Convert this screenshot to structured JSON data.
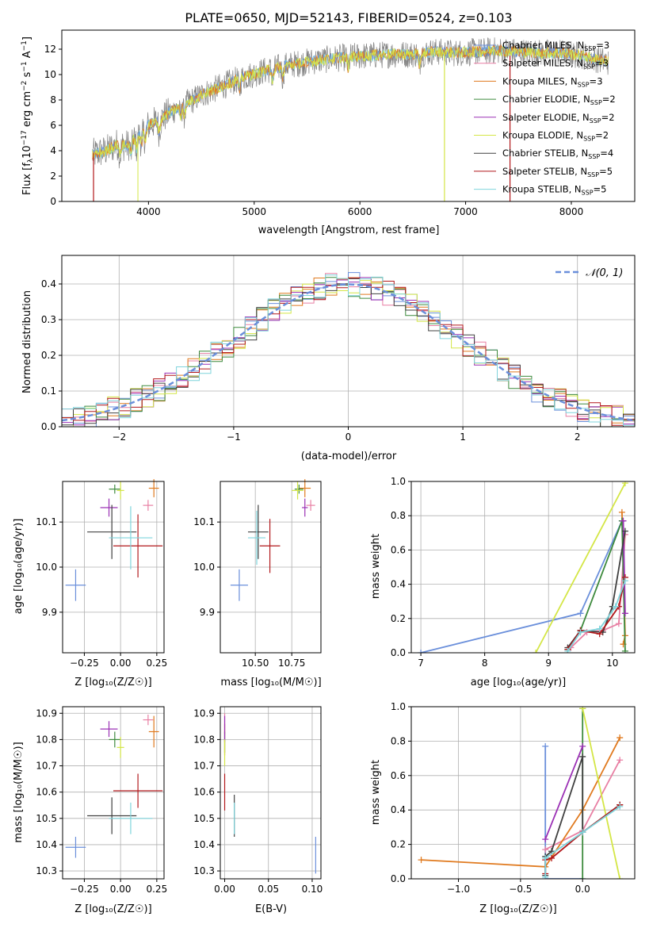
{
  "figure": {
    "title": "PLATE=0650, MJD=52143, FIBERID=0524, z=0.103"
  },
  "models": [
    {
      "name": "Chabrier MILES",
      "nssp": "3",
      "color": "#6a8fdb"
    },
    {
      "name": "Salpeter MILES",
      "nssp": "3",
      "color": "#e87fa3"
    },
    {
      "name": "Kroupa MILES",
      "nssp": "3",
      "color": "#e07a1f"
    },
    {
      "name": "Chabrier ELODIE",
      "nssp": "2",
      "color": "#3d8a3d"
    },
    {
      "name": "Salpeter ELODIE",
      "nssp": "2",
      "color": "#9b30b5"
    },
    {
      "name": "Kroupa ELODIE",
      "nssp": "2",
      "color": "#d4e646"
    },
    {
      "name": "Chabrier STELIB",
      "nssp": "4",
      "color": "#404040"
    },
    {
      "name": "Salpeter STELIB",
      "nssp": "5",
      "color": "#b2181b"
    },
    {
      "name": "Kroupa STELIB",
      "nssp": "5",
      "color": "#7fd4dc"
    }
  ],
  "chart_data": [
    {
      "id": "spectrum",
      "type": "line",
      "xlabel": "wavelength [Angstrom, rest frame]",
      "ylabel_pre": "Flux [f",
      "ylabel_sub": "λ",
      "ylabel_mid": "10",
      "ylabel_sup1": "−17",
      "ylabel_post": " erg cm",
      "ylabel_sup2": "−2",
      "ylabel_s": " s",
      "ylabel_sup3": "−1",
      "ylabel_end": " A",
      "ylabel_sup4": "−1",
      "ylabel_close": "]",
      "xlim": [
        3180,
        8600
      ],
      "ylim": [
        0,
        13.5
      ],
      "xticks": [
        4000,
        5000,
        6000,
        7000,
        8000
      ],
      "yticks": [
        0,
        2,
        4,
        6,
        8,
        10,
        12
      ],
      "data_color": "#808080",
      "continuum_x": [
        3470,
        3600,
        3700,
        3800,
        3900,
        4000,
        4100,
        4200,
        4300,
        4400,
        4500,
        4700,
        4900,
        5100,
        5300,
        5500,
        5700,
        5900,
        6100,
        6300,
        6500,
        6700,
        6900,
        7100,
        7300,
        7500,
        7700,
        7900,
        8100,
        8350
      ],
      "continuum_y": [
        3.7,
        4.0,
        4.5,
        4.4,
        5.2,
        6.0,
        6.4,
        7.0,
        7.5,
        7.9,
        8.4,
        9.1,
        9.8,
        10.3,
        10.7,
        11.0,
        11.2,
        11.4,
        11.5,
        11.6,
        11.6,
        11.8,
        11.7,
        11.8,
        11.9,
        11.8,
        11.7,
        11.7,
        11.5,
        11.0
      ],
      "annotations": [
        "Salpeter MILES dips to 0 near 3480 and 7420",
        "ELODIE drops to 0 near 6800"
      ]
    },
    {
      "id": "residuals",
      "type": "histogram",
      "xlabel": "(data-model)/error",
      "ylabel": "Normed distribution",
      "xlim": [
        -2.5,
        2.5
      ],
      "ylim": [
        0,
        0.48
      ],
      "xticks": [
        -2,
        -1,
        0,
        1,
        2
      ],
      "xticklabels": [
        "−2",
        "−1",
        "0",
        "1",
        "2"
      ],
      "yticks": [
        0.0,
        0.1,
        0.2,
        0.3,
        0.4
      ],
      "yticklabels": [
        "0.0",
        "0.1",
        "0.2",
        "0.3",
        "0.4"
      ],
      "legend": "𝒩(0, 1)",
      "legend_position": "upper right",
      "bin_width": 0.1,
      "bin_start": -2.5,
      "normal_curve_color": "#6a8fdb"
    },
    {
      "id": "age-vs-Z",
      "type": "scatter",
      "xlabel": "Z [log₁₀(Z/Z☉)]",
      "ylabel": "age  [log₁₀(age/yr)]",
      "xlim": [
        -0.4,
        0.3
      ],
      "ylim": [
        9.81,
        10.19
      ],
      "xticks": [
        -0.25,
        0.0,
        0.25
      ],
      "xticklabels": [
        "−0.25",
        "0.00",
        "0.25"
      ],
      "yticks": [
        9.9,
        10.0,
        10.1
      ],
      "yticklabels": [
        "9.9",
        "10.0",
        "10.1"
      ],
      "points": [
        {
          "x": -0.31,
          "y": 9.96,
          "xerr": 0.07,
          "yerr": 0.035,
          "model": 0
        },
        {
          "x": 0.19,
          "y": 10.137,
          "xerr": 0.035,
          "yerr": 0.012,
          "model": 1
        },
        {
          "x": 0.23,
          "y": 10.175,
          "xerr": 0.035,
          "yerr": 0.02,
          "model": 2
        },
        {
          "x": -0.04,
          "y": 10.173,
          "xerr": 0.04,
          "yerr": 0.01,
          "model": 3
        },
        {
          "x": -0.08,
          "y": 10.132,
          "xerr": 0.06,
          "yerr": 0.02,
          "model": 4
        },
        {
          "x": 0.0,
          "y": 10.17,
          "xerr": 0.025,
          "yerr": 0.02,
          "model": 5
        },
        {
          "x": -0.06,
          "y": 10.078,
          "xerr": 0.17,
          "yerr": 0.06,
          "model": 6
        },
        {
          "x": 0.12,
          "y": 10.047,
          "xerr": 0.17,
          "yerr": 0.07,
          "model": 7
        },
        {
          "x": 0.07,
          "y": 10.065,
          "xerr": 0.15,
          "yerr": 0.07,
          "model": 8
        }
      ]
    },
    {
      "id": "age-vs-mass",
      "type": "scatter",
      "xlabel": "mass [log₁₀(M/M☉)]",
      "ylabel": "",
      "xlim": [
        10.26,
        10.95
      ],
      "ylim": [
        9.81,
        10.19
      ],
      "xticks": [
        10.5,
        10.75
      ],
      "xticklabels": [
        "10.50",
        "10.75"
      ],
      "yticks": [
        9.9,
        10.0,
        10.1
      ],
      "yticklabels": [
        "9.9",
        "10.0",
        "10.1"
      ],
      "points": [
        {
          "x": 10.39,
          "y": 9.96,
          "xerr": 0.06,
          "yerr": 0.035,
          "model": 0
        },
        {
          "x": 10.88,
          "y": 10.137,
          "xerr": 0.03,
          "yerr": 0.012,
          "model": 1
        },
        {
          "x": 10.84,
          "y": 10.175,
          "xerr": 0.04,
          "yerr": 0.02,
          "model": 2
        },
        {
          "x": 10.8,
          "y": 10.173,
          "xerr": 0.03,
          "yerr": 0.01,
          "model": 3
        },
        {
          "x": 10.84,
          "y": 10.132,
          "xerr": 0.02,
          "yerr": 0.02,
          "model": 4
        },
        {
          "x": 10.79,
          "y": 10.17,
          "xerr": 0.04,
          "yerr": 0.02,
          "model": 5
        },
        {
          "x": 10.52,
          "y": 10.078,
          "xerr": 0.07,
          "yerr": 0.06,
          "model": 6
        },
        {
          "x": 10.6,
          "y": 10.047,
          "xerr": 0.07,
          "yerr": 0.06,
          "model": 7
        },
        {
          "x": 10.51,
          "y": 10.065,
          "xerr": 0.06,
          "yerr": 0.06,
          "model": 8
        }
      ]
    },
    {
      "id": "weight-vs-age",
      "type": "line",
      "xlabel": "age  [log₁₀(age/yr)]",
      "ylabel": "mass weight",
      "xlim": [
        6.85,
        10.35
      ],
      "ylim": [
        0,
        1
      ],
      "xticks": [
        7,
        8,
        9,
        10
      ],
      "xticklabels": [
        "7",
        "8",
        "9",
        "10"
      ],
      "yticks": [
        0.0,
        0.2,
        0.4,
        0.6,
        0.8,
        1.0
      ],
      "yticklabels": [
        "0.0",
        "0.2",
        "0.4",
        "0.6",
        "0.8",
        "1.0"
      ],
      "series": [
        {
          "model": 0,
          "x": [
            7.0,
            9.5,
            10.15
          ],
          "y": [
            0.0,
            0.23,
            0.77
          ]
        },
        {
          "model": 1,
          "x": [
            9.35,
            9.6,
            9.85,
            10.1,
            10.2
          ],
          "y": [
            0.03,
            0.12,
            0.13,
            0.17,
            0.69
          ]
        },
        {
          "model": 2,
          "x": [
            10.15,
            10.2,
            10.17
          ],
          "y": [
            0.82,
            0.1,
            0.05
          ]
        },
        {
          "model": 3,
          "x": [
            9.3,
            9.5,
            10.15,
            10.2
          ],
          "y": [
            0.02,
            0.13,
            0.77,
            0.01
          ]
        },
        {
          "model": 4,
          "x": [
            10.17,
            10.2
          ],
          "y": [
            0.77,
            0.23
          ]
        },
        {
          "model": 5,
          "x": [
            8.8,
            10.2
          ],
          "y": [
            0.0,
            0.99
          ]
        },
        {
          "model": 6,
          "x": [
            9.3,
            9.5,
            9.85,
            10.0,
            10.2
          ],
          "y": [
            0.03,
            0.13,
            0.12,
            0.27,
            0.71
          ]
        },
        {
          "model": 7,
          "x": [
            9.3,
            9.5,
            9.8,
            10.1,
            10.2
          ],
          "y": [
            0.02,
            0.13,
            0.11,
            0.27,
            0.44
          ]
        },
        {
          "model": 8,
          "x": [
            9.3,
            9.5,
            9.8,
            10.05,
            10.2
          ],
          "y": [
            0.01,
            0.12,
            0.14,
            0.27,
            0.42
          ]
        }
      ]
    },
    {
      "id": "mass-vs-Z",
      "type": "scatter",
      "xlabel": "Z [log₁₀(Z/Z☉)]",
      "ylabel": "mass [log₁₀(M/M☉)]",
      "xlim": [
        -0.4,
        0.3
      ],
      "ylim": [
        10.27,
        10.925
      ],
      "xticks": [
        -0.25,
        0.0,
        0.25
      ],
      "xticklabels": [
        "−0.25",
        "0.00",
        "0.25"
      ],
      "yticks": [
        10.3,
        10.4,
        10.5,
        10.6,
        10.7,
        10.8,
        10.9
      ],
      "yticklabels": [
        "10.3",
        "10.4",
        "10.5",
        "10.6",
        "10.7",
        "10.8",
        "10.9"
      ],
      "points": [
        {
          "x": -0.31,
          "y": 10.39,
          "xerr": 0.07,
          "yerr": 0.04,
          "model": 0
        },
        {
          "x": 0.19,
          "y": 10.875,
          "xerr": 0.035,
          "yerr": 0.02,
          "model": 1
        },
        {
          "x": 0.23,
          "y": 10.83,
          "xerr": 0.035,
          "yerr": 0.06,
          "model": 2
        },
        {
          "x": -0.04,
          "y": 10.8,
          "xerr": 0.04,
          "yerr": 0.03,
          "model": 3
        },
        {
          "x": -0.08,
          "y": 10.84,
          "xerr": 0.06,
          "yerr": 0.03,
          "model": 4
        },
        {
          "x": 0.0,
          "y": 10.77,
          "xerr": 0.025,
          "yerr": 0.04,
          "model": 5
        },
        {
          "x": -0.06,
          "y": 10.51,
          "xerr": 0.17,
          "yerr": 0.07,
          "model": 6
        },
        {
          "x": 0.12,
          "y": 10.605,
          "xerr": 0.17,
          "yerr": 0.065,
          "model": 7
        },
        {
          "x": 0.07,
          "y": 10.5,
          "xerr": 0.15,
          "yerr": 0.06,
          "model": 8
        }
      ]
    },
    {
      "id": "mass-vs-ebv",
      "type": "scatter",
      "xlabel": "E(B-V)",
      "ylabel": "",
      "xlim": [
        -0.005,
        0.11
      ],
      "ylim": [
        10.27,
        10.925
      ],
      "xticks": [
        0.0,
        0.05,
        0.1
      ],
      "xticklabels": [
        "0.00",
        "0.05",
        "0.10"
      ],
      "yticks": [
        10.3,
        10.4,
        10.5,
        10.6,
        10.7,
        10.8,
        10.9
      ],
      "yticklabels": [
        "10.3",
        "10.4",
        "10.5",
        "10.6",
        "10.7",
        "10.8",
        "10.9"
      ],
      "points": [
        {
          "x": 0.104,
          "y": 10.36,
          "xerr": 0,
          "yerr": 0.07,
          "model": 0
        },
        {
          "x": 0.0,
          "y": 10.86,
          "xerr": 0,
          "yerr": 0.04,
          "model": 1
        },
        {
          "x": 0.0,
          "y": 10.8,
          "xerr": 0,
          "yerr": 0.06,
          "model": 2
        },
        {
          "x": 0.0,
          "y": 10.79,
          "xerr": 0,
          "yerr": 0.04,
          "model": 3
        },
        {
          "x": 0.0,
          "y": 10.84,
          "xerr": 0,
          "yerr": 0.05,
          "model": 4
        },
        {
          "x": 0.0,
          "y": 10.75,
          "xerr": 0,
          "yerr": 0.05,
          "model": 5
        },
        {
          "x": 0.011,
          "y": 10.51,
          "xerr": 0,
          "yerr": 0.08,
          "model": 6
        },
        {
          "x": 0.0,
          "y": 10.6,
          "xerr": 0,
          "yerr": 0.07,
          "model": 7
        },
        {
          "x": 0.011,
          "y": 10.5,
          "xerr": 0,
          "yerr": 0.06,
          "model": 8
        }
      ]
    },
    {
      "id": "weight-vs-Z",
      "type": "line",
      "xlabel": "Z [log₁₀(Z/Z☉)]",
      "ylabel": "mass weight",
      "xlim": [
        -1.38,
        0.42
      ],
      "ylim": [
        0,
        1
      ],
      "xticks": [
        -1.0,
        -0.5,
        0.0
      ],
      "xticklabels": [
        "−1.0",
        "−0.5",
        "0.0"
      ],
      "yticks": [
        0.0,
        0.2,
        0.4,
        0.6,
        0.8,
        1.0
      ],
      "yticklabels": [
        "0.0",
        "0.2",
        "0.4",
        "0.6",
        "0.8",
        "1.0"
      ],
      "series": [
        {
          "model": 0,
          "x": [
            -0.3,
            -0.3,
            0.0
          ],
          "y": [
            0.77,
            0.0,
            0.0
          ]
        },
        {
          "model": 1,
          "x": [
            -0.3,
            0.0,
            0.3
          ],
          "y": [
            0.17,
            0.28,
            0.69
          ]
        },
        {
          "model": 2,
          "x": [
            -1.3,
            -0.3,
            0.0,
            0.3
          ],
          "y": [
            0.11,
            0.07,
            0.4,
            0.82
          ]
        },
        {
          "model": 3,
          "x": [
            0.0,
            0.0
          ],
          "y": [
            0.99,
            0.0
          ]
        },
        {
          "model": 4,
          "x": [
            -0.3,
            0.0
          ],
          "y": [
            0.23,
            0.77
          ]
        },
        {
          "model": 5,
          "x": [
            0.0,
            0.3
          ],
          "y": [
            0.99,
            0.0
          ]
        },
        {
          "model": 6,
          "x": [
            -0.3,
            -0.3,
            -0.25,
            0.0,
            0.0,
            0.3
          ],
          "y": [
            0.02,
            0.13,
            0.16,
            0.71,
            0.27,
            0.43
          ]
        },
        {
          "model": 7,
          "x": [
            -0.3,
            -0.3,
            -0.25,
            0.0,
            0.3
          ],
          "y": [
            0.03,
            0.11,
            0.12,
            0.27,
            0.43
          ]
        },
        {
          "model": 8,
          "x": [
            -0.3,
            -0.3,
            0.0,
            0.3
          ],
          "y": [
            0.01,
            0.12,
            0.27,
            0.42
          ]
        }
      ]
    }
  ]
}
